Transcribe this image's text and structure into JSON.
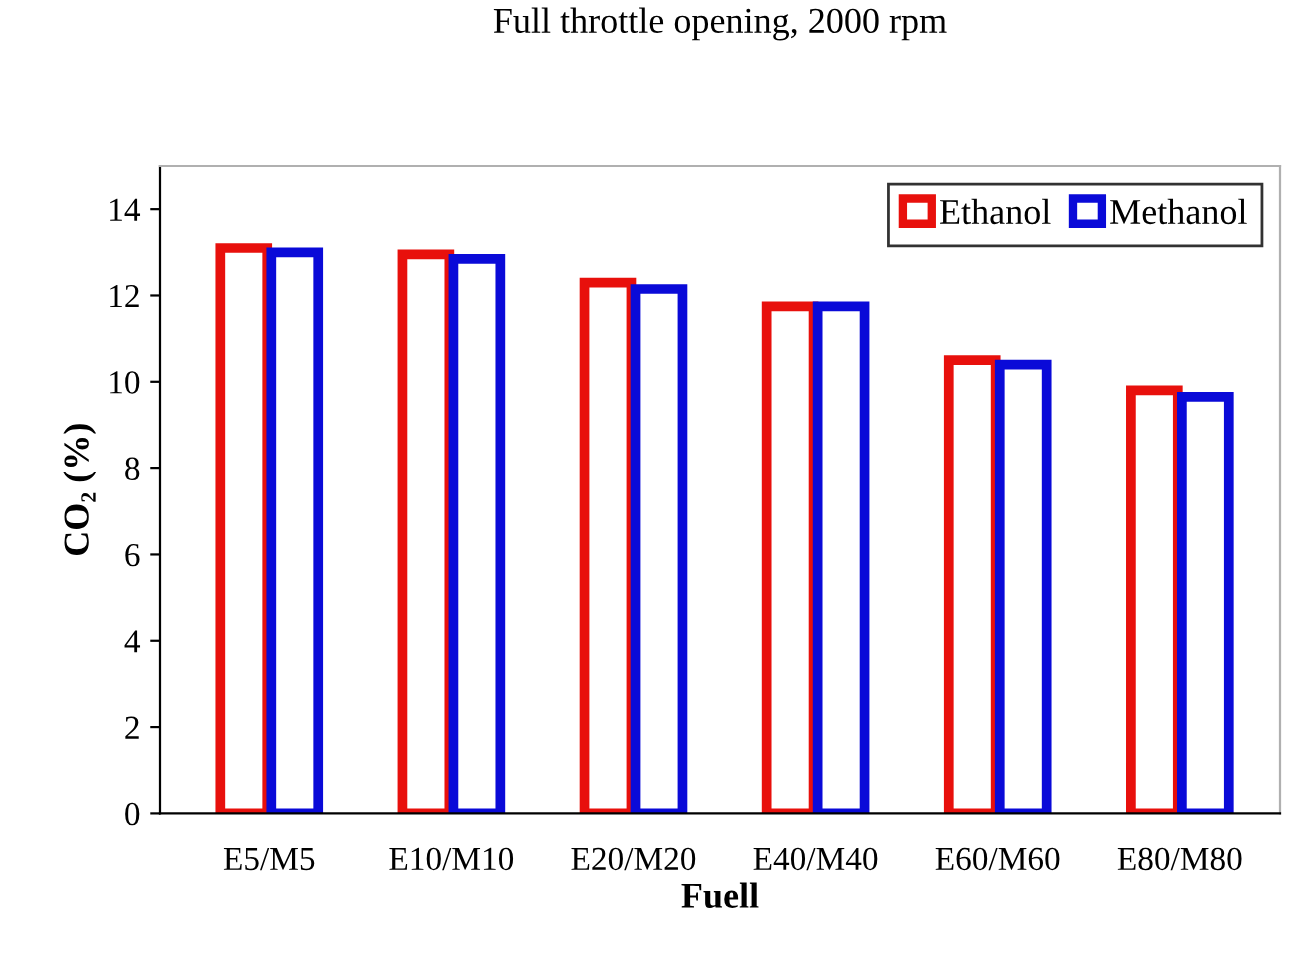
{
  "chart_data": {
    "type": "bar",
    "title": "Full throttle opening, 2000 rpm",
    "xlabel": "Fuell",
    "ylabel": "CO₂ (%)",
    "categories": [
      "E5/M5",
      "E10/M10",
      "E20/M20",
      "E40/M40",
      "E60/M60",
      "E80/M80"
    ],
    "series": [
      {
        "name": "Ethanol",
        "color": "#e8100c",
        "values": [
          13.1,
          12.95,
          12.3,
          11.75,
          10.5,
          9.8
        ]
      },
      {
        "name": "Methanol",
        "color": "#0a0ad8",
        "values": [
          13.0,
          12.85,
          12.15,
          11.75,
          10.4,
          9.65
        ]
      }
    ],
    "ylim": [
      0,
      15
    ],
    "yticks": [
      0,
      2,
      4,
      6,
      8,
      10,
      12,
      14
    ],
    "grid": false,
    "legend": "top right"
  }
}
